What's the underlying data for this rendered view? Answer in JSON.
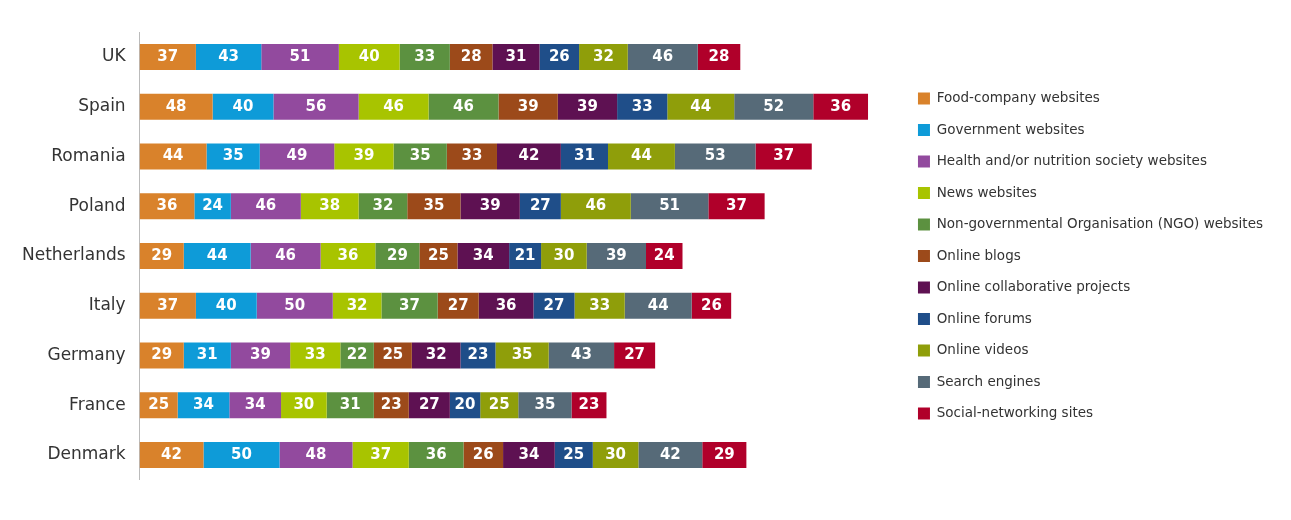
{
  "chart_data": {
    "type": "bar",
    "orientation": "horizontal",
    "stacked": true,
    "data_labels": true,
    "legend": "right",
    "grid": false,
    "tick_labels": "y",
    "categories": [
      "UK",
      "Spain",
      "Romania",
      "Poland",
      "Netherlands",
      "Italy",
      "Germany",
      "France",
      "Denmark"
    ],
    "series": [
      {
        "name": "Food-company websites",
        "color": "#d9822b",
        "values": [
          37,
          48,
          44,
          36,
          29,
          37,
          29,
          25,
          42
        ]
      },
      {
        "name": "Government websites",
        "color": "#0e9bd8",
        "values": [
          43,
          40,
          35,
          24,
          44,
          40,
          31,
          34,
          50
        ]
      },
      {
        "name": "Health and/or nutrition society websites",
        "color": "#924a9e",
        "values": [
          51,
          56,
          49,
          46,
          46,
          50,
          39,
          34,
          48
        ]
      },
      {
        "name": "News websites",
        "color": "#a8c400",
        "values": [
          40,
          46,
          39,
          38,
          36,
          32,
          33,
          30,
          37
        ]
      },
      {
        "name": "Non-governmental Organisation (NGO) websites",
        "color": "#5c9140",
        "values": [
          33,
          46,
          35,
          32,
          29,
          37,
          22,
          31,
          36
        ]
      },
      {
        "name": "Online blogs",
        "color": "#9c4a1a",
        "values": [
          28,
          39,
          33,
          35,
          25,
          27,
          25,
          23,
          26
        ]
      },
      {
        "name": "Online collaborative projects",
        "color": "#5e1152",
        "values": [
          31,
          39,
          42,
          39,
          34,
          36,
          32,
          27,
          34
        ]
      },
      {
        "name": "Online forums",
        "color": "#1f4e89",
        "values": [
          26,
          33,
          31,
          27,
          21,
          27,
          23,
          20,
          25
        ]
      },
      {
        "name": "Online videos",
        "color": "#8f9e0a",
        "values": [
          32,
          44,
          44,
          46,
          30,
          33,
          35,
          25,
          30
        ]
      },
      {
        "name": "Search engines",
        "color": "#566a78",
        "values": [
          46,
          52,
          53,
          51,
          39,
          44,
          43,
          35,
          42
        ]
      },
      {
        "name": "Social-networking sites",
        "color": "#b0002a",
        "values": [
          28,
          36,
          37,
          37,
          24,
          26,
          27,
          23,
          29
        ]
      }
    ]
  }
}
